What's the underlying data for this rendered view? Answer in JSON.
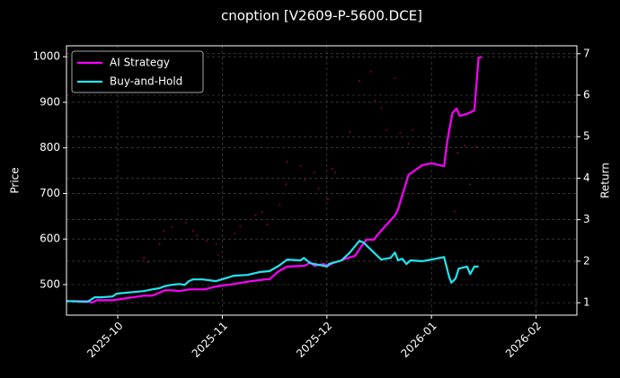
{
  "chart_data": {
    "type": "line",
    "title": "cnoption [V2609-P-5600.DCE]",
    "ylabel": "Price",
    "y2label": "Return",
    "grid": true,
    "legend": "upper left",
    "xlim": [
      9.51,
      14.39
    ],
    "xticks": [
      {
        "value": 10,
        "label": "2025-10"
      },
      {
        "value": 11,
        "label": "2025-11"
      },
      {
        "value": 12,
        "label": "2025-12"
      },
      {
        "value": 13,
        "label": "2026-01"
      },
      {
        "value": 14,
        "label": "2026-02"
      }
    ],
    "ylim": [
      433,
      1024
    ],
    "yticks": [
      500,
      600,
      700,
      800,
      900,
      1000
    ],
    "y2lim": [
      0.7,
      7.19
    ],
    "y2ticks": [
      1,
      2,
      3,
      4,
      5,
      6,
      7
    ],
    "series": [
      {
        "name": "AI Strategy",
        "color": "#ff00ff",
        "axis": "y2",
        "x": [
          9.51,
          9.72,
          9.75,
          9.8,
          9.95,
          10.25,
          10.33,
          10.4,
          10.45,
          10.51,
          10.59,
          10.68,
          10.83,
          10.94,
          11.11,
          11.28,
          11.41,
          11.45,
          11.54,
          11.62,
          11.79,
          11.84,
          11.88,
          11.97,
          12.01,
          12.07,
          12.12,
          12.18,
          12.27,
          12.33,
          12.38,
          12.45,
          12.48,
          12.57,
          12.65,
          12.68,
          12.72,
          12.78,
          12.91,
          13.0,
          13.12,
          13.15,
          13.2,
          13.24,
          13.27,
          13.34,
          13.41,
          13.45,
          13.48
        ],
        "values": [
          1.04,
          1.04,
          1.0,
          1.06,
          1.06,
          1.17,
          1.17,
          1.24,
          1.3,
          1.3,
          1.28,
          1.32,
          1.32,
          1.39,
          1.45,
          1.52,
          1.56,
          1.56,
          1.76,
          1.87,
          1.89,
          1.97,
          1.89,
          1.93,
          1.89,
          1.97,
          2.0,
          2.06,
          2.13,
          2.36,
          2.52,
          2.52,
          2.62,
          2.88,
          3.1,
          3.25,
          3.58,
          4.08,
          4.31,
          4.36,
          4.29,
          4.88,
          5.57,
          5.68,
          5.5,
          5.55,
          5.63,
          6.9,
          6.92
        ]
      },
      {
        "name": "Buy-and-Hold",
        "color": "#22e5f0",
        "axis": "y2",
        "x": [
          9.51,
          9.71,
          9.78,
          9.84,
          9.95,
          9.99,
          10.25,
          10.33,
          10.4,
          10.44,
          10.51,
          10.59,
          10.64,
          10.68,
          10.72,
          10.81,
          10.94,
          11.11,
          11.24,
          11.36,
          11.45,
          11.54,
          11.62,
          11.75,
          11.78,
          11.84,
          11.97,
          12.0,
          12.02,
          12.07,
          12.14,
          12.22,
          12.31,
          12.35,
          12.44,
          12.52,
          12.61,
          12.65,
          12.68,
          12.72,
          12.76,
          12.8,
          12.91,
          13.0,
          13.12,
          13.17,
          13.19,
          13.23,
          13.26,
          13.34,
          13.37,
          13.41,
          13.45
        ],
        "values": [
          1.04,
          1.02,
          1.13,
          1.13,
          1.15,
          1.22,
          1.28,
          1.32,
          1.35,
          1.39,
          1.43,
          1.45,
          1.43,
          1.52,
          1.56,
          1.56,
          1.52,
          1.65,
          1.67,
          1.74,
          1.76,
          1.89,
          2.04,
          2.02,
          2.08,
          1.95,
          1.89,
          1.87,
          1.93,
          1.97,
          2.02,
          2.21,
          2.49,
          2.45,
          2.23,
          2.04,
          2.08,
          2.21,
          2.02,
          2.06,
          1.93,
          2.02,
          2.0,
          2.04,
          2.1,
          1.61,
          1.48,
          1.58,
          1.82,
          1.87,
          1.69,
          1.87,
          1.87
        ]
      },
      {
        "type": "scatter",
        "color": "#b0001e",
        "x": [
          10.25,
          10.29,
          10.4,
          10.44,
          10.52,
          10.65,
          10.72,
          10.76,
          10.85,
          10.94,
          10.96,
          11.12,
          11.17,
          11.32,
          11.38,
          11.43,
          11.55,
          11.61,
          11.62,
          11.75,
          11.79,
          11.88,
          11.92,
          12.01,
          12.05,
          12.08,
          12.22,
          12.31,
          12.42,
          12.46,
          12.52,
          12.57,
          12.65,
          12.7,
          12.78,
          12.82,
          13.22,
          13.25,
          13.32,
          13.37,
          13.43
        ],
        "values": [
          559,
          549,
          589,
          618,
          626,
          636,
          618,
          608,
          596,
          589,
          565,
          612,
          628,
          652,
          659,
          632,
          675,
          720,
          770,
          760,
          730,
          746,
          711,
          687,
          754,
          746,
          835,
          947,
          967,
          904,
          888,
          839,
          953,
          833,
          809,
          839,
          661,
          789,
          805,
          720,
          803
        ]
      }
    ]
  }
}
